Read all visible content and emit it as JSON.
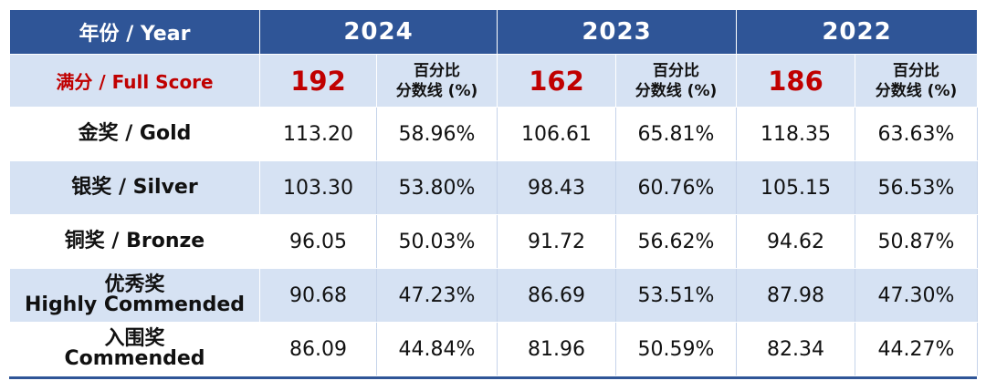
{
  "header": {
    "year_label": "年份 / Year",
    "years": [
      "2024",
      "2023",
      "2022"
    ]
  },
  "full_score": {
    "label": "满分 / Full Score",
    "values": [
      "192",
      "162",
      "186"
    ],
    "pct_header_line1": "百分比",
    "pct_header_line2": "分数线 (%)"
  },
  "rows": [
    {
      "label_line1": "金奖 / Gold",
      "label_line2": "",
      "cells": [
        "113.20",
        "58.96%",
        "106.61",
        "65.81%",
        "118.35",
        "63.63%"
      ]
    },
    {
      "label_line1": "银奖 / Silver",
      "label_line2": "",
      "cells": [
        "103.30",
        "53.80%",
        "98.43",
        "60.76%",
        "105.15",
        "56.53%"
      ]
    },
    {
      "label_line1": "铜奖 / Bronze",
      "label_line2": "",
      "cells": [
        "96.05",
        "50.03%",
        "91.72",
        "56.62%",
        "94.62",
        "50.87%"
      ]
    },
    {
      "label_line1": "优秀奖",
      "label_line2": "Highly Commended",
      "cells": [
        "90.68",
        "47.23%",
        "86.69",
        "53.51%",
        "87.98",
        "47.30%"
      ]
    },
    {
      "label_line1": "入围奖",
      "label_line2": "Commended",
      "cells": [
        "86.09",
        "44.84%",
        "81.96",
        "50.59%",
        "82.34",
        "44.27%"
      ]
    }
  ],
  "colors": {
    "header_bg": "#2f5597",
    "light_row_bg": "#d6e2f3",
    "score_red": "#c00000"
  }
}
